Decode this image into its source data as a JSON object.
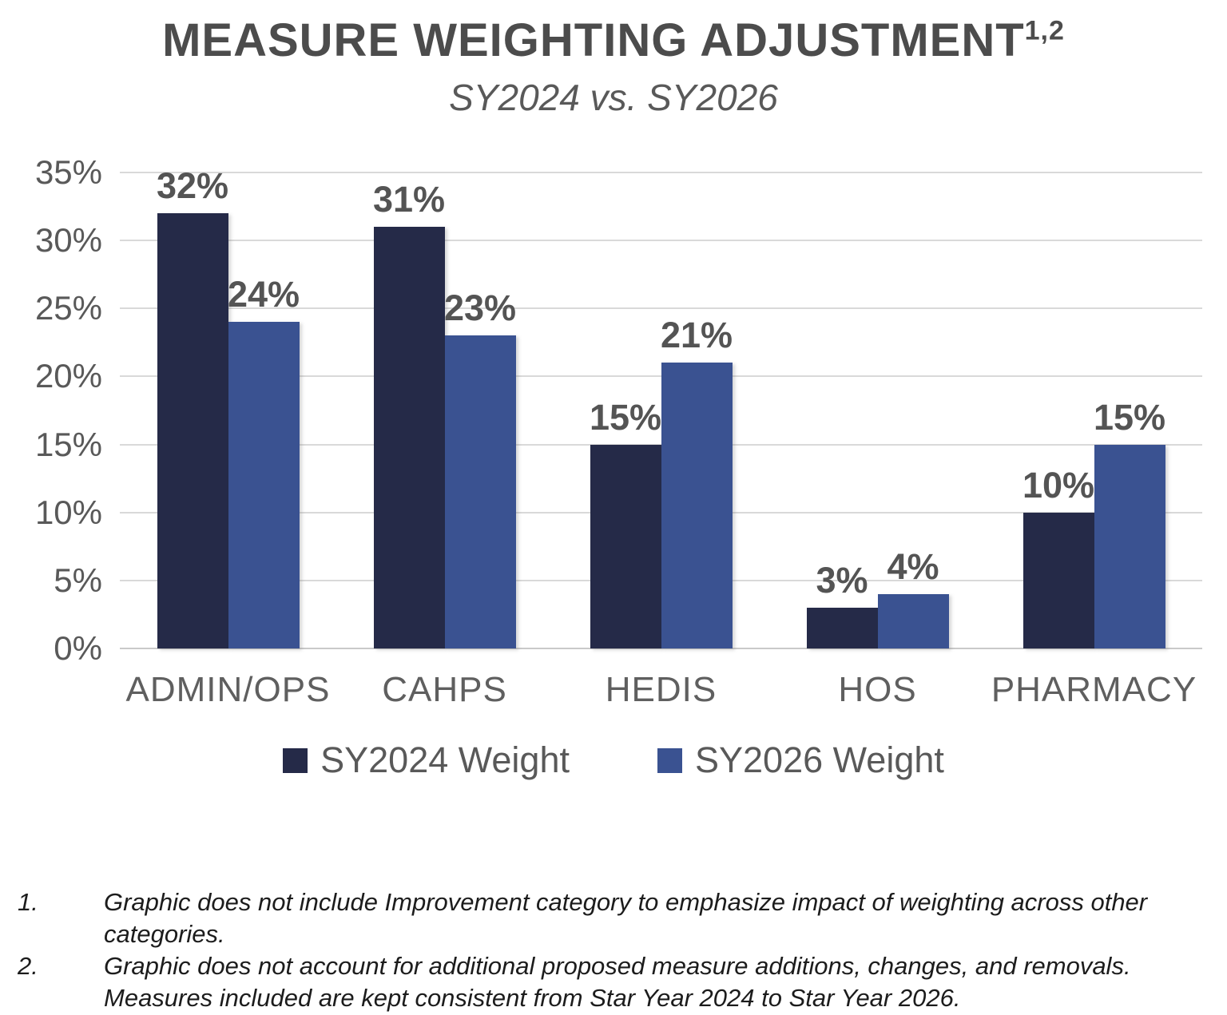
{
  "title": {
    "text": "MEASURE WEIGHTING ADJUSTMENT",
    "superscript": "1,2",
    "subtitle": "SY2024 vs. SY2026"
  },
  "chart_data": {
    "type": "bar",
    "title": "MEASURE WEIGHTING ADJUSTMENT (SY2024 vs. SY2026)",
    "categories": [
      "ADMIN/OPS",
      "CAHPS",
      "HEDIS",
      "HOS",
      "PHARMACY"
    ],
    "series": [
      {
        "name": "SY2024 Weight",
        "color": "#252a48",
        "values": [
          32,
          31,
          15,
          3,
          10
        ],
        "labels": [
          "32%",
          "31%",
          "15%",
          "3%",
          "10%"
        ]
      },
      {
        "name": "SY2026 Weight",
        "color": "#3a5291",
        "values": [
          24,
          23,
          21,
          4,
          15
        ],
        "labels": [
          "24%",
          "23%",
          "21%",
          "4%",
          "15%"
        ]
      }
    ],
    "ylim": [
      0,
      35
    ],
    "yticks": [
      "35%",
      "30%",
      "25%",
      "20%",
      "15%",
      "10%",
      "5%",
      "0%"
    ],
    "grid": true,
    "legend_position": "bottom"
  },
  "footnotes": [
    {
      "num": "1.",
      "lines": [
        "Graphic does not include Improvement category to emphasize impact of weighting across other",
        "categories."
      ]
    },
    {
      "num": "2.",
      "lines": [
        "Graphic does not account for additional proposed measure additions, changes, and removals.",
        "Measures included are kept consistent from Star Year 2024 to Star Year 2026."
      ]
    }
  ]
}
